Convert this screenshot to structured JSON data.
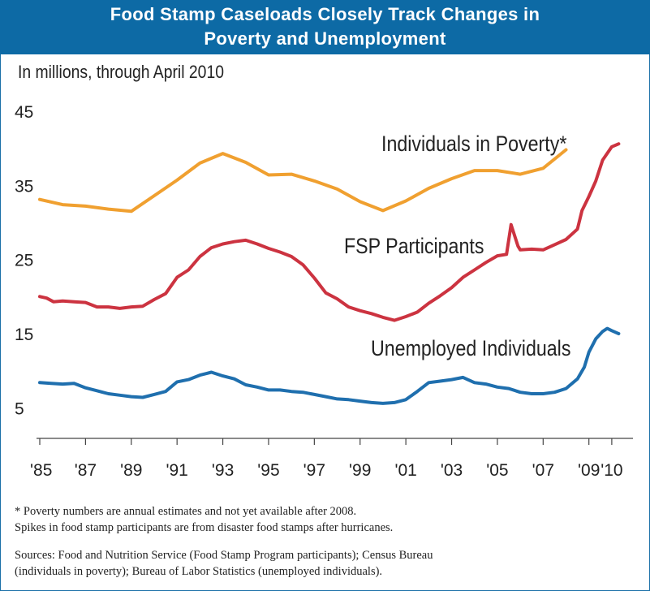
{
  "title": {
    "line1": "Food Stamp Caseloads Closely Track Changes in",
    "line2": "Poverty and Unemployment"
  },
  "subtitle": "In millions, through April 2010",
  "notes": {
    "line1": "* Poverty numbers are annual estimates and not yet available after 2008.",
    "line2": "Spikes in food stamp participants are from disaster food stamps after hurricanes.",
    "sources1": "Sources: Food and Nutrition Service (Food Stamp Program participants); Census Bureau",
    "sources2": "(individuals in poverty); Bureau of Labor Statistics (unemployed individuals)."
  },
  "colors": {
    "title_bg": "#0d6aa5",
    "poverty": "#f0a030",
    "fsp": "#cc3340",
    "unemployed": "#1f6fae"
  },
  "chart_data": {
    "type": "line",
    "xlim": [
      1985,
      2010.5
    ],
    "ylim": [
      0,
      45
    ],
    "yticks": [
      5,
      15,
      25,
      35,
      45
    ],
    "yticks_labels": [
      "5",
      "15",
      "25",
      "35",
      "45"
    ],
    "xticks": [
      1985,
      1987,
      1989,
      1991,
      1993,
      1995,
      1997,
      1999,
      2001,
      2003,
      2005,
      2007,
      2009,
      2010
    ],
    "xticks_labels": [
      "'85",
      "'87",
      "'89",
      "'91",
      "'93",
      "'95",
      "'97",
      "'99",
      "'01",
      "'03",
      "'05",
      "'07",
      "'09",
      "'10"
    ],
    "grid": false,
    "series": [
      {
        "name": "Individuals in Poverty*",
        "x": [
          1985,
          1986,
          1987,
          1988,
          1989,
          1990,
          1991,
          1992,
          1993,
          1994,
          1995,
          1996,
          1997,
          1998,
          1999,
          2000,
          2001,
          2002,
          2003,
          2004,
          2005,
          2006,
          2007,
          2008
        ],
        "values": [
          33.1,
          32.4,
          32.2,
          31.8,
          31.5,
          33.6,
          35.7,
          38.0,
          39.3,
          38.1,
          36.4,
          36.5,
          35.6,
          34.5,
          32.8,
          31.6,
          32.9,
          34.6,
          35.9,
          37.0,
          37.0,
          36.5,
          37.3,
          39.8
        ]
      },
      {
        "name": "FSP Participants",
        "x": [
          1985,
          1985.3,
          1985.6,
          1986,
          1986.5,
          1987,
          1987.5,
          1988,
          1988.5,
          1989,
          1989.5,
          1990,
          1990.5,
          1991,
          1991.5,
          1992,
          1992.5,
          1993,
          1993.5,
          1994,
          1994.5,
          1995,
          1995.5,
          1996,
          1996.5,
          1997,
          1997.5,
          1998,
          1998.5,
          1999,
          1999.5,
          2000,
          2000.5,
          2001,
          2001.5,
          2002,
          2002.5,
          2003,
          2003.5,
          2004,
          2004.5,
          2005,
          2005.4,
          2005.6,
          2005.9,
          2006,
          2006.5,
          2007,
          2007.5,
          2008,
          2008.5,
          2008.7,
          2009,
          2009.3,
          2009.6,
          2010,
          2010.3
        ],
        "values": [
          20.0,
          19.8,
          19.3,
          19.4,
          19.3,
          19.2,
          18.6,
          18.6,
          18.4,
          18.6,
          18.7,
          19.6,
          20.4,
          22.6,
          23.6,
          25.4,
          26.6,
          27.1,
          27.4,
          27.6,
          27.1,
          26.5,
          26.0,
          25.4,
          24.3,
          22.5,
          20.5,
          19.7,
          18.6,
          18.1,
          17.7,
          17.2,
          16.8,
          17.3,
          17.9,
          19.1,
          20.1,
          21.2,
          22.6,
          23.6,
          24.6,
          25.5,
          25.7,
          29.7,
          26.8,
          26.3,
          26.4,
          26.3,
          27.0,
          27.7,
          29.1,
          31.6,
          33.5,
          35.6,
          38.4,
          40.2,
          40.6
        ]
      },
      {
        "name": "Unemployed Individuals",
        "x": [
          1985,
          1985.5,
          1986,
          1986.5,
          1987,
          1987.5,
          1988,
          1988.5,
          1989,
          1989.5,
          1990,
          1990.5,
          1991,
          1991.5,
          1992,
          1992.5,
          1993,
          1993.5,
          1994,
          1994.5,
          1995,
          1995.5,
          1996,
          1996.5,
          1997,
          1997.5,
          1998,
          1998.5,
          1999,
          1999.5,
          2000,
          2000.5,
          2001,
          2001.5,
          2002,
          2002.5,
          2003,
          2003.5,
          2004,
          2004.5,
          2005,
          2005.5,
          2006,
          2006.5,
          2007,
          2007.5,
          2008,
          2008.5,
          2008.8,
          2009,
          2009.3,
          2009.6,
          2009.8,
          2010,
          2010.3
        ],
        "values": [
          8.4,
          8.3,
          8.2,
          8.3,
          7.7,
          7.3,
          6.9,
          6.7,
          6.5,
          6.4,
          6.8,
          7.2,
          8.5,
          8.8,
          9.4,
          9.8,
          9.3,
          8.9,
          8.1,
          7.8,
          7.4,
          7.4,
          7.2,
          7.1,
          6.8,
          6.5,
          6.2,
          6.1,
          5.9,
          5.7,
          5.6,
          5.7,
          6.1,
          7.2,
          8.4,
          8.6,
          8.8,
          9.1,
          8.4,
          8.2,
          7.8,
          7.6,
          7.1,
          6.9,
          6.9,
          7.1,
          7.6,
          8.9,
          10.5,
          12.5,
          14.3,
          15.3,
          15.7,
          15.4,
          15.0
        ]
      }
    ],
    "labels": [
      {
        "series": "Individuals in Poverty*",
        "text": "Individuals in Poverty*"
      },
      {
        "series": "FSP Participants",
        "text": "FSP Participants"
      },
      {
        "series": "Unemployed Individuals",
        "text": "Unemployed Individuals"
      }
    ]
  }
}
